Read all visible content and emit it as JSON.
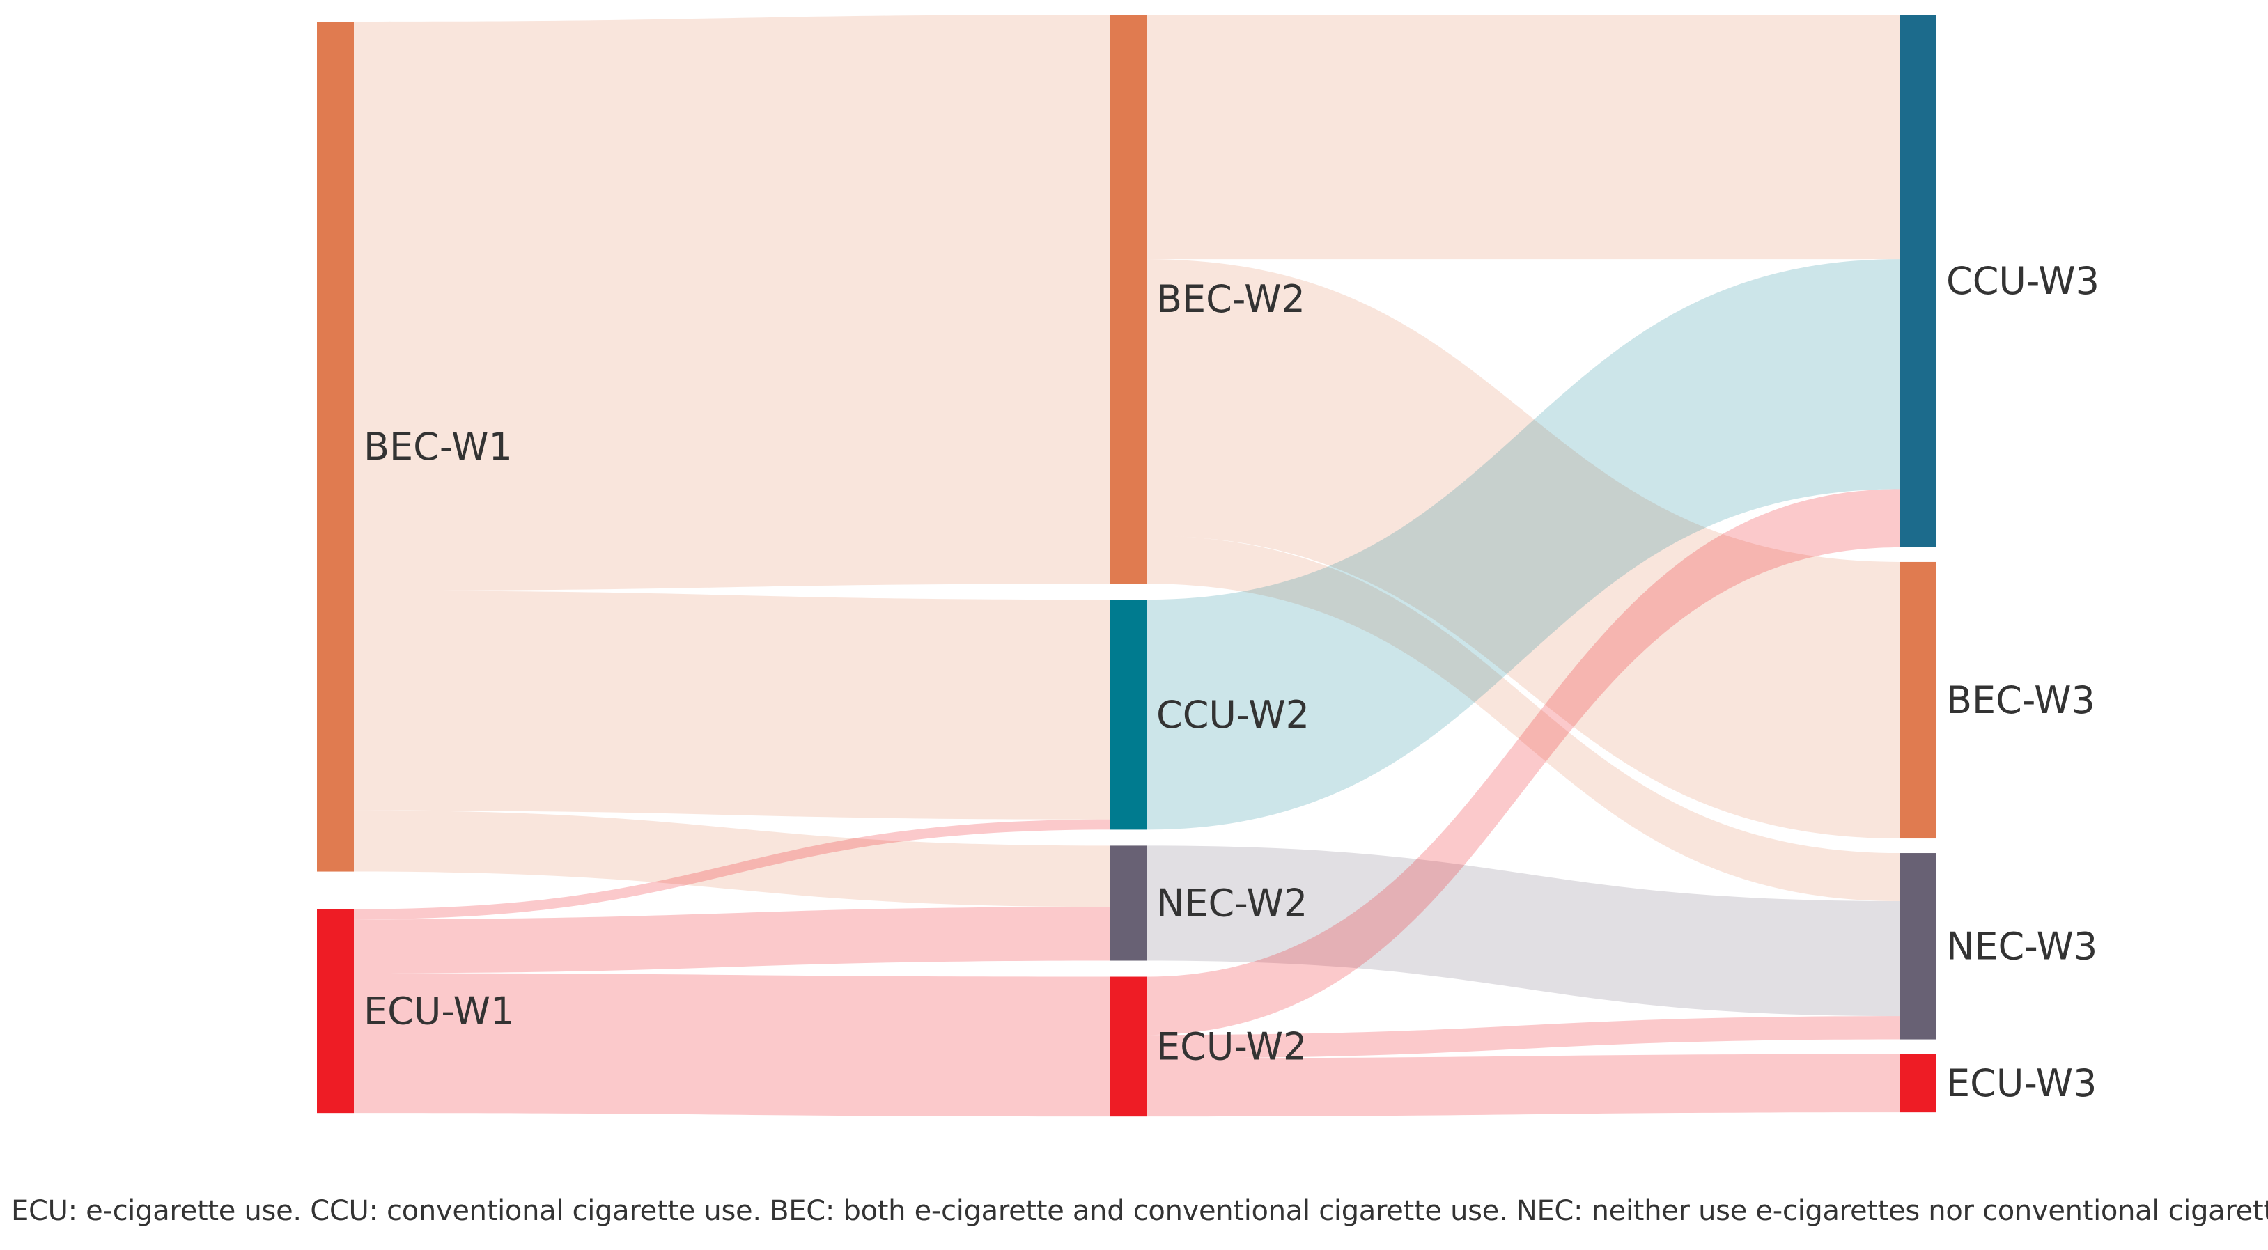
{
  "chart_data": {
    "type": "sankey",
    "columns": [
      [
        "BEC-W1",
        "ECU-W1"
      ],
      [
        "BEC-W2",
        "CCU-W2",
        "NEC-W2",
        "ECU-W2"
      ],
      [
        "CCU-W3",
        "BEC-W3",
        "NEC-W3",
        "ECU-W3"
      ]
    ],
    "nodes": [
      {
        "id": "BEC-W1",
        "label": "BEC-W1",
        "color": "#e07b50"
      },
      {
        "id": "ECU-W1",
        "label": "ECU-W1",
        "color": "#ee1c25"
      },
      {
        "id": "BEC-W2",
        "label": "BEC-W2",
        "color": "#e07b50"
      },
      {
        "id": "CCU-W2",
        "label": "CCU-W2",
        "color": "#007b8f"
      },
      {
        "id": "NEC-W2",
        "label": "NEC-W2",
        "color": "#686174"
      },
      {
        "id": "ECU-W2",
        "label": "ECU-W2",
        "color": "#ee1c25"
      },
      {
        "id": "CCU-W3",
        "label": "CCU-W3",
        "color": "#1c6b8c"
      },
      {
        "id": "BEC-W3",
        "label": "BEC-W3",
        "color": "#e07b50"
      },
      {
        "id": "NEC-W3",
        "label": "NEC-W3",
        "color": "#686174"
      },
      {
        "id": "ECU-W3",
        "label": "ECU-W3",
        "color": "#ee1c25"
      }
    ],
    "links": [
      {
        "source": "BEC-W1",
        "target": "BEC-W2",
        "value": 391
      },
      {
        "source": "BEC-W1",
        "target": "CCU-W2",
        "value": 151
      },
      {
        "source": "BEC-W1",
        "target": "NEC-W2",
        "value": 42
      },
      {
        "source": "ECU-W1",
        "target": "CCU-W2",
        "value": 7
      },
      {
        "source": "ECU-W1",
        "target": "NEC-W2",
        "value": 37
      },
      {
        "source": "ECU-W1",
        "target": "ECU-W2",
        "value": 96
      },
      {
        "source": "BEC-W2",
        "target": "CCU-W3",
        "value": 168
      },
      {
        "source": "BEC-W2",
        "target": "BEC-W3",
        "value": 190
      },
      {
        "source": "BEC-W2",
        "target": "NEC-W3",
        "value": 33
      },
      {
        "source": "CCU-W2",
        "target": "CCU-W3",
        "value": 158
      },
      {
        "source": "NEC-W2",
        "target": "NEC-W3",
        "value": 79
      },
      {
        "source": "ECU-W2",
        "target": "CCU-W3",
        "value": 40
      },
      {
        "source": "ECU-W2",
        "target": "NEC-W3",
        "value": 16
      },
      {
        "source": "ECU-W2",
        "target": "ECU-W3",
        "value": 40
      }
    ],
    "note": "values are relative flow widths estimated from the figure"
  },
  "footnote": "ECU: e-cigarette use. CCU: conventional cigarette use. BEC: both e-cigarette and conventional cigarette use. NEC: neither use e-cigarettes nor conventional cigarettes."
}
